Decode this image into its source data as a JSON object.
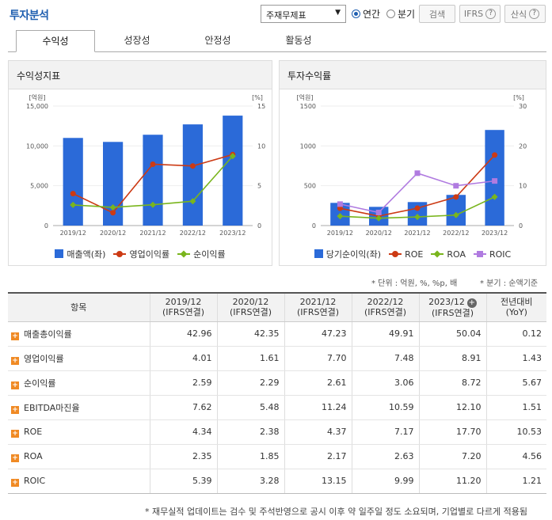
{
  "header": {
    "title": "투자분석",
    "select_value": "주재무제표",
    "radio_annual": "연간",
    "radio_quarter": "분기",
    "btn_search": "검색",
    "btn_ifrs": "IFRS",
    "btn_formula": "산식"
  },
  "tabs": [
    "수익성",
    "성장성",
    "안정성",
    "활동성"
  ],
  "left_panel": {
    "title": "수익성지표"
  },
  "right_panel": {
    "title": "투자수익률"
  },
  "chart_data": [
    {
      "type": "bar",
      "title": "수익성지표",
      "categories": [
        "2019/12",
        "2020/12",
        "2021/12",
        "2022/12",
        "2023/12"
      ],
      "left_unit": "[억원]",
      "right_unit": "[%]",
      "left_ticks": [
        "0",
        "5,000",
        "10,000",
        "15,000"
      ],
      "right_ticks": [
        "0",
        "5",
        "10",
        "15"
      ],
      "ylim": [
        0,
        15000
      ],
      "y2lim": [
        0,
        15
      ],
      "series": [
        {
          "name": "매출액(좌)",
          "kind": "bar",
          "axis": "left",
          "color": "#2b6ad8",
          "marker": "square",
          "values": [
            11000,
            10500,
            11400,
            12700,
            13800
          ]
        },
        {
          "name": "영업이익률",
          "kind": "line",
          "axis": "right",
          "color": "#cc3a14",
          "marker": "circle",
          "values": [
            4.01,
            1.61,
            7.7,
            7.48,
            8.91
          ]
        },
        {
          "name": "순이익률",
          "kind": "line",
          "axis": "right",
          "color": "#7ab51d",
          "marker": "diamond",
          "values": [
            2.59,
            2.29,
            2.61,
            3.06,
            8.72
          ]
        }
      ]
    },
    {
      "type": "bar",
      "title": "투자수익률",
      "categories": [
        "2019/12",
        "2020/12",
        "2021/12",
        "2022/12",
        "2023/12"
      ],
      "left_unit": "[억원]",
      "right_unit": "[%]",
      "left_ticks": [
        "0",
        "500",
        "1000",
        "1500"
      ],
      "right_ticks": [
        "0",
        "10",
        "20",
        "30"
      ],
      "ylim": [
        0,
        1500
      ],
      "y2lim": [
        0,
        30
      ],
      "series": [
        {
          "name": "당기순이익(좌)",
          "kind": "bar",
          "axis": "left",
          "color": "#2b6ad8",
          "marker": "square",
          "values": [
            285,
            235,
            295,
            385,
            1200
          ]
        },
        {
          "name": "ROE",
          "kind": "line",
          "axis": "right",
          "color": "#cc3a14",
          "marker": "circle",
          "values": [
            4.34,
            2.38,
            4.37,
            7.17,
            17.7
          ]
        },
        {
          "name": "ROA",
          "kind": "line",
          "axis": "right",
          "color": "#7ab51d",
          "marker": "diamond",
          "values": [
            2.35,
            1.85,
            2.17,
            2.63,
            7.2
          ]
        },
        {
          "name": "ROIC",
          "kind": "line",
          "axis": "right",
          "color": "#b07be0",
          "marker": "square",
          "values": [
            5.39,
            3.28,
            13.15,
            9.99,
            11.2
          ]
        }
      ]
    }
  ],
  "notes": {
    "unit": "* 단위 : 억원, %, %p, 배",
    "quarter": "* 분기 : 순액기준"
  },
  "table": {
    "headers": [
      "항목",
      "2019/12\n(IFRS연결)",
      "2020/12\n(IFRS연결)",
      "2021/12\n(IFRS연결)",
      "2022/12\n(IFRS연결)",
      "2023/12\n(IFRS연결)",
      "전년대비\n(YoY)"
    ],
    "rows": [
      [
        "매출총이익률",
        "42.96",
        "42.35",
        "47.23",
        "49.91",
        "50.04",
        "0.12"
      ],
      [
        "영업이익률",
        "4.01",
        "1.61",
        "7.70",
        "7.48",
        "8.91",
        "1.43"
      ],
      [
        "순이익률",
        "2.59",
        "2.29",
        "2.61",
        "3.06",
        "8.72",
        "5.67"
      ],
      [
        "EBITDA마진율",
        "7.62",
        "5.48",
        "11.24",
        "10.59",
        "12.10",
        "1.51"
      ],
      [
        "ROE",
        "4.34",
        "2.38",
        "4.37",
        "7.17",
        "17.70",
        "10.53"
      ],
      [
        "ROA",
        "2.35",
        "1.85",
        "2.17",
        "2.63",
        "7.20",
        "4.56"
      ],
      [
        "ROIC",
        "5.39",
        "3.28",
        "13.15",
        "9.99",
        "11.20",
        "1.21"
      ]
    ]
  },
  "footnote": "* 재무실적 업데이트는 검수 및 주석반영으로 공시 이후 약 일주일 정도 소요되며, 기업별로 다르게 적용됨"
}
